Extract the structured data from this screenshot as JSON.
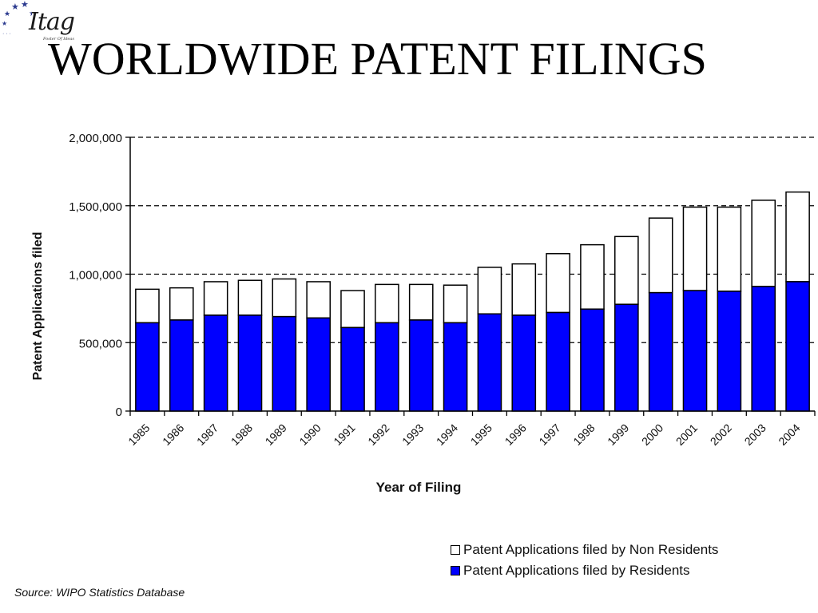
{
  "logo": {
    "text": "Itag",
    "tagline": "Foster Of Ideas"
  },
  "page_title": "WORLDWIDE PATENT FILINGS",
  "source": "Source: WIPO Statistics Database",
  "colors": {
    "residents": "#0000ff",
    "non_residents": "#ffffff",
    "outline": "#000000",
    "logo_stars": "#2b3a8f"
  },
  "chart_data": {
    "type": "bar",
    "stacked": true,
    "xlabel": "Year of Filing",
    "ylabel": "Patent Applications filed",
    "ylim": [
      0,
      2000000
    ],
    "yticks": [
      0,
      500000,
      1000000,
      1500000,
      2000000
    ],
    "ytick_labels": [
      "0",
      "500,000",
      "1,000,000",
      "1,500,000",
      "2,000,000"
    ],
    "grid": "dashed horizontal",
    "legend_position": "bottom-right",
    "categories": [
      "1985",
      "1986",
      "1987",
      "1988",
      "1989",
      "1990",
      "1991",
      "1992",
      "1993",
      "1994",
      "1995",
      "1996",
      "1997",
      "1998",
      "1999",
      "2000",
      "2001",
      "2002",
      "2003",
      "2004"
    ],
    "series": [
      {
        "name": "Patent Applications filed by Residents",
        "values": [
          645000,
          665000,
          700000,
          700000,
          690000,
          680000,
          610000,
          645000,
          665000,
          645000,
          710000,
          700000,
          720000,
          745000,
          780000,
          865000,
          880000,
          875000,
          910000,
          945000
        ]
      },
      {
        "name": "Patent Applications filed by Non Residents",
        "values": [
          245000,
          235000,
          245000,
          255000,
          275000,
          265000,
          270000,
          280000,
          260000,
          275000,
          340000,
          375000,
          430000,
          470000,
          495000,
          545000,
          610000,
          615000,
          630000,
          655000
        ]
      }
    ]
  }
}
